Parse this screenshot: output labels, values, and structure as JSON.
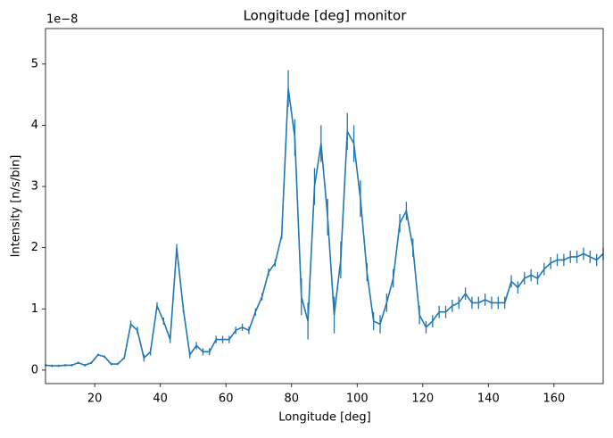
{
  "chart_data": {
    "type": "errorbar_line",
    "title": "Longitude [deg] monitor",
    "x_label": "Longitude [deg]",
    "y_label": "Intensity [n/s/bin]",
    "y_offset_label": "1e−8",
    "xlim": [
      5,
      175
    ],
    "ylim": [
      -0.22,
      5.58
    ],
    "xticks": [
      20,
      40,
      60,
      80,
      100,
      120,
      140,
      160
    ],
    "yticks": [
      0,
      1,
      2,
      3,
      4,
      5
    ],
    "x": [
      5,
      7,
      9,
      11,
      13,
      15,
      17,
      19,
      21,
      23,
      25,
      27,
      29,
      31,
      33,
      35,
      37,
      39,
      41,
      43,
      45,
      47,
      49,
      51,
      53,
      55,
      57,
      59,
      61,
      63,
      65,
      67,
      69,
      71,
      73,
      75,
      77,
      79,
      81,
      83,
      85,
      87,
      89,
      91,
      93,
      95,
      97,
      99,
      101,
      103,
      105,
      107,
      109,
      111,
      113,
      115,
      117,
      119,
      121,
      123,
      125,
      127,
      129,
      131,
      133,
      135,
      137,
      139,
      141,
      143,
      145,
      147,
      149,
      151,
      153,
      155,
      157,
      159,
      161,
      163,
      165,
      167,
      169,
      171,
      173,
      175
    ],
    "series": [
      {
        "color": "#1f77b4",
        "values": [
          0.08,
          0.07,
          0.07,
          0.08,
          0.08,
          0.12,
          0.08,
          0.12,
          0.25,
          0.22,
          0.1,
          0.1,
          0.2,
          0.75,
          0.65,
          0.2,
          0.3,
          1.05,
          0.8,
          0.5,
          2.0,
          1.0,
          0.25,
          0.4,
          0.3,
          0.3,
          0.5,
          0.5,
          0.5,
          0.65,
          0.7,
          0.65,
          0.95,
          1.2,
          1.6,
          1.75,
          2.2,
          4.6,
          3.8,
          1.2,
          0.8,
          3.0,
          3.7,
          2.5,
          0.9,
          1.8,
          3.9,
          3.7,
          2.8,
          1.6,
          0.8,
          0.75,
          1.1,
          1.5,
          2.4,
          2.6,
          2.0,
          0.9,
          0.7,
          0.8,
          0.95,
          0.95,
          1.05,
          1.1,
          1.25,
          1.1,
          1.1,
          1.15,
          1.1,
          1.1,
          1.1,
          1.45,
          1.35,
          1.5,
          1.55,
          1.5,
          1.65,
          1.75,
          1.8,
          1.8,
          1.85,
          1.85,
          1.9,
          1.85,
          1.8,
          1.9
        ],
        "errors": [
          0.02,
          0.02,
          0.02,
          0.02,
          0.02,
          0.02,
          0.02,
          0.02,
          0.02,
          0.02,
          0.02,
          0.02,
          0.02,
          0.06,
          0.06,
          0.06,
          0.06,
          0.06,
          0.06,
          0.06,
          0.06,
          0.06,
          0.06,
          0.06,
          0.06,
          0.06,
          0.06,
          0.06,
          0.06,
          0.06,
          0.06,
          0.06,
          0.06,
          0.06,
          0.06,
          0.06,
          0.06,
          0.3,
          0.3,
          0.3,
          0.3,
          0.3,
          0.3,
          0.3,
          0.3,
          0.3,
          0.3,
          0.3,
          0.3,
          0.15,
          0.15,
          0.15,
          0.15,
          0.15,
          0.15,
          0.15,
          0.15,
          0.15,
          0.1,
          0.1,
          0.1,
          0.1,
          0.1,
          0.1,
          0.1,
          0.1,
          0.1,
          0.1,
          0.1,
          0.1,
          0.1,
          0.1,
          0.1,
          0.1,
          0.1,
          0.1,
          0.1,
          0.1,
          0.1,
          0.1,
          0.1,
          0.1,
          0.1,
          0.1,
          0.1,
          0.1
        ]
      }
    ]
  }
}
